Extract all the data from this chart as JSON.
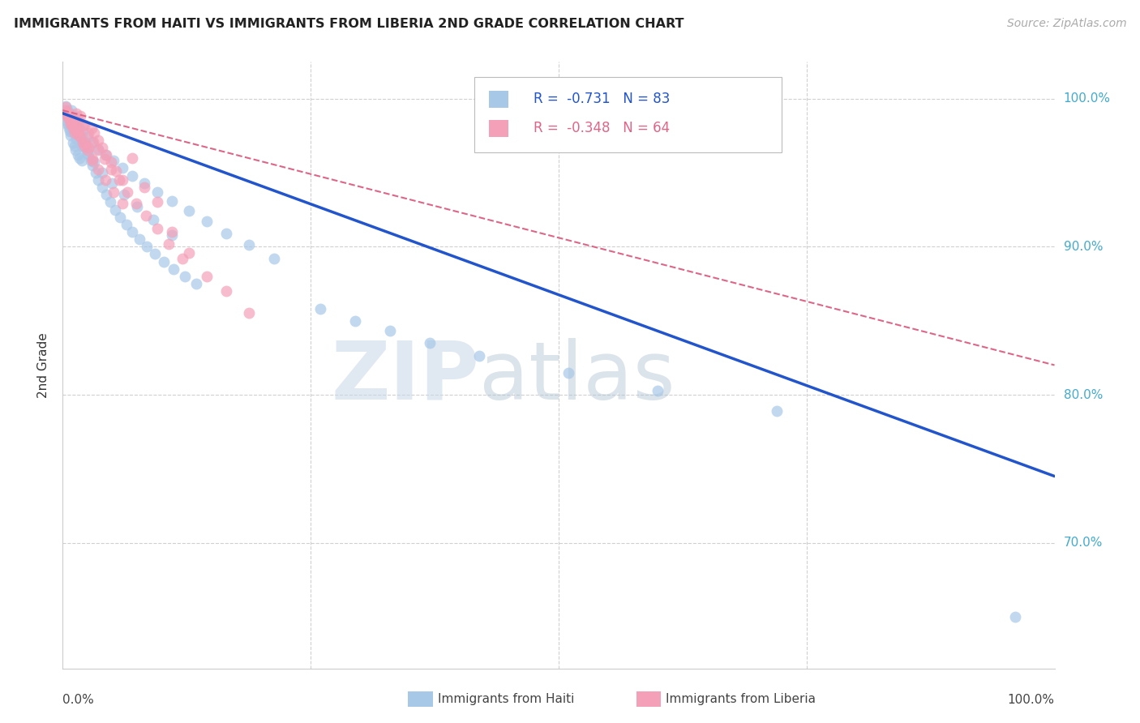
{
  "title": "IMMIGRANTS FROM HAITI VS IMMIGRANTS FROM LIBERIA 2ND GRADE CORRELATION CHART",
  "source": "Source: ZipAtlas.com",
  "ylabel": "2nd Grade",
  "r_haiti": -0.731,
  "n_haiti": 83,
  "r_liberia": -0.348,
  "n_liberia": 64,
  "color_haiti": "#a8c8e8",
  "color_liberia": "#f4a0b8",
  "line_color_haiti": "#2255cc",
  "line_color_liberia": "#dd6688",
  "watermark_zip": "ZIP",
  "watermark_atlas": "atlas",
  "ytick_labels": [
    "100.0%",
    "90.0%",
    "80.0%",
    "70.0%"
  ],
  "ytick_values": [
    1.0,
    0.9,
    0.8,
    0.7
  ],
  "xlim": [
    0.0,
    1.0
  ],
  "ylim": [
    0.615,
    1.025
  ],
  "haiti_scatter_x": [
    0.002,
    0.003,
    0.004,
    0.005,
    0.006,
    0.007,
    0.008,
    0.009,
    0.01,
    0.011,
    0.012,
    0.013,
    0.014,
    0.015,
    0.016,
    0.017,
    0.018,
    0.019,
    0.02,
    0.022,
    0.024,
    0.026,
    0.028,
    0.03,
    0.033,
    0.036,
    0.04,
    0.044,
    0.048,
    0.053,
    0.058,
    0.064,
    0.07,
    0.077,
    0.085,
    0.093,
    0.102,
    0.112,
    0.123,
    0.135,
    0.003,
    0.005,
    0.007,
    0.01,
    0.013,
    0.016,
    0.02,
    0.025,
    0.03,
    0.036,
    0.043,
    0.051,
    0.06,
    0.07,
    0.082,
    0.095,
    0.11,
    0.127,
    0.145,
    0.165,
    0.188,
    0.213,
    0.006,
    0.009,
    0.014,
    0.019,
    0.025,
    0.032,
    0.04,
    0.05,
    0.062,
    0.075,
    0.091,
    0.11,
    0.26,
    0.295,
    0.33,
    0.37,
    0.42,
    0.51,
    0.6,
    0.72,
    0.96
  ],
  "haiti_scatter_y": [
    0.99,
    0.988,
    0.985,
    0.983,
    0.98,
    0.978,
    0.975,
    0.992,
    0.97,
    0.988,
    0.968,
    0.965,
    0.985,
    0.962,
    0.98,
    0.96,
    0.975,
    0.958,
    0.972,
    0.968,
    0.965,
    0.962,
    0.958,
    0.955,
    0.95,
    0.945,
    0.94,
    0.935,
    0.93,
    0.925,
    0.92,
    0.915,
    0.91,
    0.905,
    0.9,
    0.895,
    0.89,
    0.885,
    0.88,
    0.875,
    0.995,
    0.992,
    0.99,
    0.987,
    0.984,
    0.981,
    0.978,
    0.974,
    0.97,
    0.966,
    0.962,
    0.958,
    0.953,
    0.948,
    0.943,
    0.937,
    0.931,
    0.924,
    0.917,
    0.909,
    0.901,
    0.892,
    0.982,
    0.978,
    0.973,
    0.968,
    0.963,
    0.957,
    0.95,
    0.943,
    0.935,
    0.927,
    0.918,
    0.908,
    0.858,
    0.85,
    0.843,
    0.835,
    0.826,
    0.815,
    0.803,
    0.789,
    0.65
  ],
  "liberia_scatter_x": [
    0.002,
    0.004,
    0.006,
    0.008,
    0.01,
    0.012,
    0.014,
    0.016,
    0.018,
    0.02,
    0.023,
    0.026,
    0.029,
    0.032,
    0.036,
    0.04,
    0.044,
    0.049,
    0.054,
    0.06,
    0.003,
    0.005,
    0.007,
    0.009,
    0.012,
    0.015,
    0.018,
    0.022,
    0.026,
    0.031,
    0.036,
    0.042,
    0.049,
    0.057,
    0.065,
    0.074,
    0.084,
    0.095,
    0.107,
    0.121,
    0.004,
    0.006,
    0.009,
    0.012,
    0.016,
    0.02,
    0.025,
    0.03,
    0.036,
    0.043,
    0.051,
    0.06,
    0.07,
    0.082,
    0.095,
    0.11,
    0.127,
    0.145,
    0.165,
    0.188,
    0.01,
    0.015,
    0.022,
    0.03
  ],
  "liberia_scatter_y": [
    0.992,
    0.989,
    0.986,
    0.983,
    0.98,
    0.977,
    0.99,
    0.985,
    0.974,
    0.982,
    0.97,
    0.967,
    0.98,
    0.977,
    0.972,
    0.967,
    0.962,
    0.957,
    0.951,
    0.945,
    0.994,
    0.991,
    0.988,
    0.985,
    0.981,
    0.978,
    0.988,
    0.982,
    0.977,
    0.971,
    0.965,
    0.959,
    0.952,
    0.945,
    0.937,
    0.929,
    0.921,
    0.912,
    0.902,
    0.892,
    0.99,
    0.987,
    0.983,
    0.979,
    0.975,
    0.97,
    0.965,
    0.959,
    0.952,
    0.945,
    0.937,
    0.929,
    0.96,
    0.94,
    0.93,
    0.91,
    0.896,
    0.88,
    0.87,
    0.855,
    0.985,
    0.978,
    0.968,
    0.958
  ],
  "haiti_line_x": [
    0.0,
    1.0
  ],
  "haiti_line_y": [
    0.99,
    0.745
  ],
  "liberia_line_x": [
    0.0,
    1.0
  ],
  "liberia_line_y": [
    0.992,
    0.82
  ],
  "grid_color": "#d0d0d0",
  "right_label_color": "#44aacc",
  "background_color": "#ffffff"
}
